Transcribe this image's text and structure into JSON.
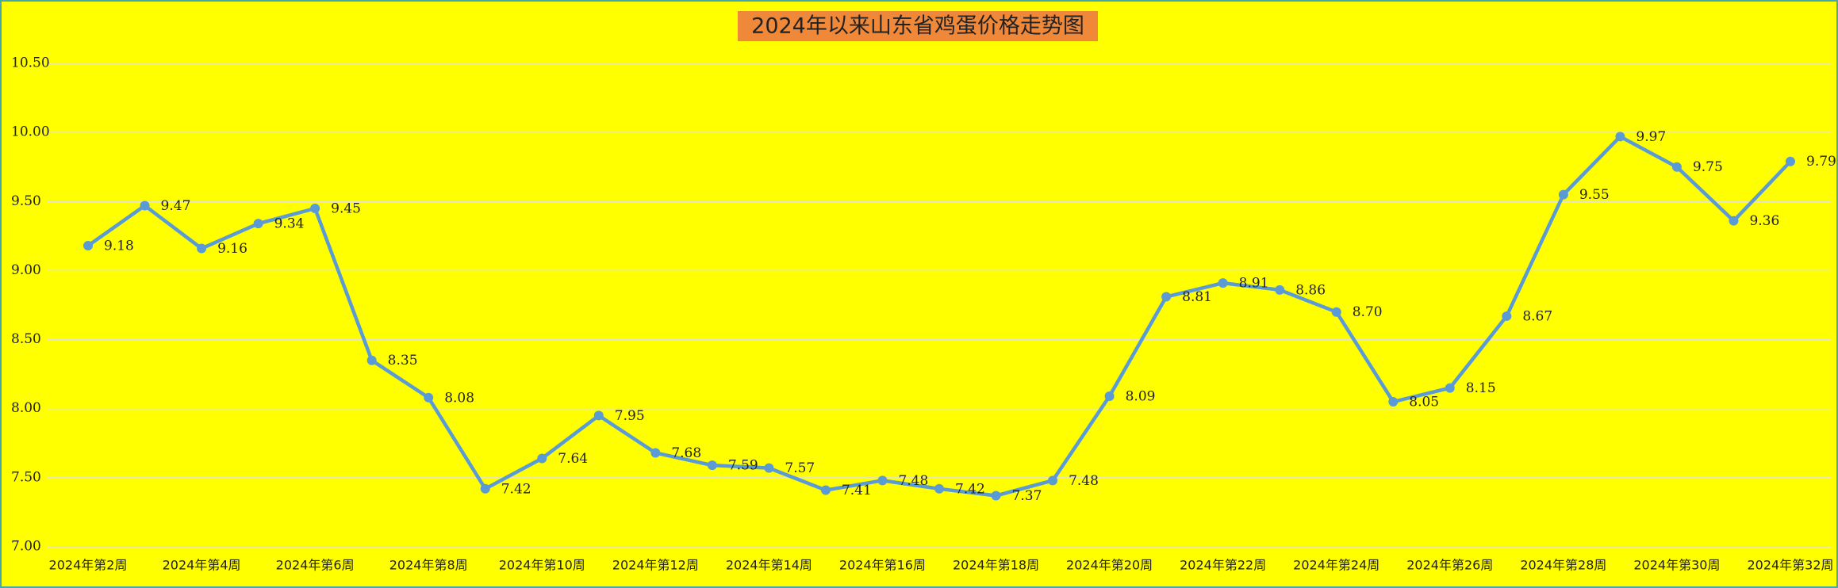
{
  "chart_data": {
    "type": "line",
    "title": "2024年以来山东省鸡蛋价格走势图",
    "categories": [
      "2024年第2周",
      null,
      "2024年第4周",
      null,
      "2024年第6周",
      null,
      "2024年第8周",
      null,
      "2024年第10周",
      null,
      "2024年第12周",
      null,
      "2024年第14周",
      null,
      "2024年第16周",
      null,
      "2024年第18周",
      null,
      "2024年第20周",
      null,
      "2024年第22周",
      null,
      "2024年第24周",
      null,
      "2024年第26周",
      null,
      "2024年第28周",
      null,
      "2024年第30周",
      null,
      "2024年第32周"
    ],
    "series": [
      {
        "color": "#5b9bd5",
        "values": [
          9.18,
          9.47,
          9.16,
          9.34,
          9.45,
          8.35,
          8.08,
          7.42,
          7.64,
          7.95,
          7.68,
          7.59,
          7.57,
          7.41,
          7.48,
          7.42,
          7.37,
          7.48,
          8.09,
          8.81,
          8.91,
          8.86,
          8.7,
          8.05,
          8.15,
          8.67,
          9.55,
          9.97,
          9.75,
          9.36,
          9.79
        ],
        "value_labels": [
          "9.18",
          "9.47",
          "9.16",
          "9.34",
          "9.45",
          "8.35",
          "8.08",
          "7.42",
          "7.64",
          "7.95",
          "7.68",
          "7.59",
          "7.57",
          "7.41",
          "7.48",
          "7.42",
          "7.37",
          "7.48",
          "8.09",
          "8.81",
          "8.91",
          "8.86",
          "8.70",
          "8.05",
          "8.15",
          "8.67",
          "9.55",
          "9.97",
          "9.75",
          "9.36",
          "9.79"
        ]
      }
    ],
    "ylim": [
      7,
      10.5
    ],
    "yticks": [
      {
        "value": 7,
        "label": "7.00"
      },
      {
        "value": 7.5,
        "label": "7.50"
      },
      {
        "value": 8,
        "label": "8.00"
      },
      {
        "value": 8.5,
        "label": "8.50"
      },
      {
        "value": 9,
        "label": "9.00"
      },
      {
        "value": 9.5,
        "label": "9.50"
      },
      {
        "value": 10,
        "label": "10.00"
      },
      {
        "value": 10.5,
        "label": "10.50"
      }
    ],
    "grid": true
  }
}
